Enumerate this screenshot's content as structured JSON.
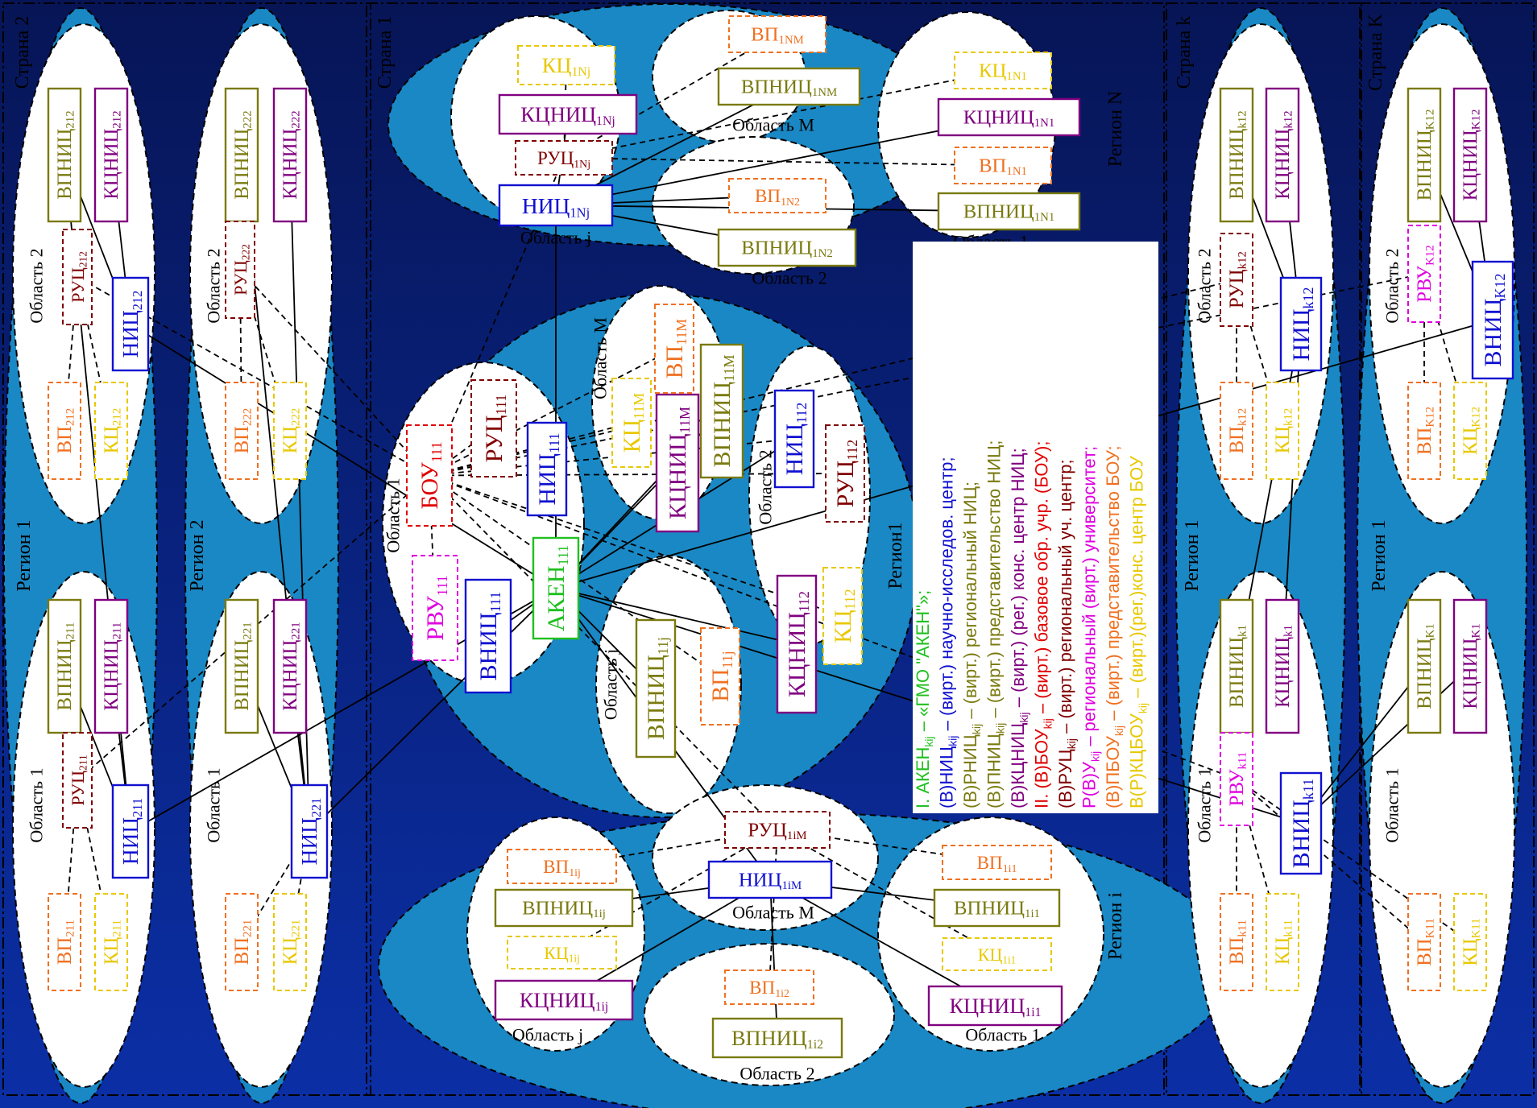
{
  "colors": {
    "background_top": "#0b1e7a",
    "background_bottom": "#0a2a9e",
    "region_fill": "#1a88c4",
    "area_fill": "#ffffff",
    "text_black": "#111111",
    "nic": "#1010d0",
    "vpnic": "#7a7a10",
    "kcnic": "#800080",
    "kc": "#e8c800",
    "vp": "#f07020",
    "ruc": "#800000",
    "bou": "#e00000",
    "rvu": "#e000e0",
    "aken": "#20c020",
    "legend_bg": "#ffffff"
  },
  "countries": [
    {
      "id": "c2",
      "label": "Страна 2"
    },
    {
      "id": "c1",
      "label": "Страна 1"
    },
    {
      "id": "ck",
      "label": "Страна k"
    },
    {
      "id": "cK",
      "label": "Страна K"
    }
  ],
  "regions": {
    "c2r1": "Регион 1",
    "c2r2": "Регион 2",
    "c1N": "Регион N",
    "c1one": "Регион1",
    "c1i": "Регион i",
    "ckr1": "Регион 1",
    "cKr1": "Регион 1"
  },
  "areas": {
    "c2_211": "Область 1",
    "c2_212": "Область 2",
    "c2_221": "Область 1",
    "c2_222": "Область 2",
    "N_j": "Область j",
    "N_M": "Область M",
    "N_1": "Область 1",
    "N_2": "Область 2",
    "r1_1": "Область 1",
    "r1_M": "Область M",
    "r1_2": "Область 2",
    "r1_j": "Область j",
    "i_M": "Область M",
    "i_j": "Область j",
    "i_1": "Область 1",
    "i_2": "Область 2",
    "k_1": "Область 1",
    "k_2": "Область 2",
    "K_1": "Область 1",
    "K_2": "Область 2"
  },
  "nodes": {
    "nic212": {
      "t": "НИЦ",
      "s": "212"
    },
    "vpnic212": {
      "t": "ВПНИЦ",
      "s": "212"
    },
    "kcnic212": {
      "t": "КЦНИЦ",
      "s": "212"
    },
    "ruc212": {
      "t": "РУЦ",
      "s": "212"
    },
    "vp212": {
      "t": "ВП",
      "s": "212"
    },
    "kc212": {
      "t": "КЦ",
      "s": "212"
    },
    "nic211": {
      "t": "НИЦ",
      "s": "211"
    },
    "vpnic211": {
      "t": "ВПНИЦ",
      "s": "211"
    },
    "kcnic211": {
      "t": "КЦНИЦ",
      "s": "211"
    },
    "ruc211": {
      "t": "РУЦ",
      "s": "211"
    },
    "vp211": {
      "t": "ВП",
      "s": "211"
    },
    "kc211": {
      "t": "КЦ",
      "s": "211"
    },
    "vpnic222": {
      "t": "ВПНИЦ",
      "s": "222"
    },
    "kcnic222": {
      "t": "КЦНИЦ",
      "s": "222"
    },
    "ruc222": {
      "t": "РУЦ",
      "s": "222"
    },
    "vp222": {
      "t": "ВП",
      "s": "222"
    },
    "kc222": {
      "t": "КЦ",
      "s": "222"
    },
    "nic221": {
      "t": "НИЦ",
      "s": "221"
    },
    "vpnic221": {
      "t": "ВПНИЦ",
      "s": "221"
    },
    "kcnic221": {
      "t": "КЦНИЦ",
      "s": "221"
    },
    "vp221": {
      "t": "ВП",
      "s": "221"
    },
    "kc221": {
      "t": "КЦ",
      "s": "221"
    },
    "kc1Nj": {
      "t": "КЦ",
      "s": "1Nj"
    },
    "kcnic1Nj": {
      "t": "КЦНИЦ",
      "s": "1Nj"
    },
    "ruc1Nj": {
      "t": "РУЦ",
      "s": "1Nj"
    },
    "nic1Nj": {
      "t": "НИЦ",
      "s": "1Nj"
    },
    "vp1NM": {
      "t": "ВП",
      "s": "1NM"
    },
    "vpnic1NM": {
      "t": "ВПНИЦ",
      "s": "1NM"
    },
    "kc1N1": {
      "t": "КЦ",
      "s": "1N1"
    },
    "kcnic1N1": {
      "t": "КЦНИЦ",
      "s": "1N1"
    },
    "vp1N1": {
      "t": "ВП",
      "s": "1N1"
    },
    "vpnic1N1": {
      "t": "ВПНИЦ",
      "s": "1N1"
    },
    "vp1N2": {
      "t": "ВП",
      "s": "1N2"
    },
    "vpnic1N2": {
      "t": "ВПНИЦ",
      "s": "1N2"
    },
    "bou111": {
      "t": "БОУ",
      "s": "111"
    },
    "ruc111": {
      "t": "РУЦ",
      "s": "111"
    },
    "nic111": {
      "t": "НИЦ",
      "s": "111"
    },
    "rvu111": {
      "t": "РВУ",
      "s": "111"
    },
    "vnic111": {
      "t": "ВНИЦ",
      "s": "111"
    },
    "aken111": {
      "t": "АКЕН",
      "s": "111"
    },
    "kc11M": {
      "t": "КЦ",
      "s": "11M"
    },
    "kcnic11M": {
      "t": "КЦНИЦ",
      "s": "11M"
    },
    "vp11M": {
      "t": "ВП",
      "s": "11M"
    },
    "vpnic11M": {
      "t": "ВПНИЦ",
      "s": "11M"
    },
    "nic112": {
      "t": "НИЦ",
      "s": "112"
    },
    "ruc112": {
      "t": "РУЦ",
      "s": "112"
    },
    "kcnic112": {
      "t": "КЦНИЦ",
      "s": "112"
    },
    "kc112": {
      "t": "КЦ",
      "s": "112"
    },
    "vpnic11j": {
      "t": "ВПНИЦ",
      "s": "11j"
    },
    "vp11j": {
      "t": "ВП",
      "s": "11j"
    },
    "ruc1iM": {
      "t": "РУЦ",
      "s": "1iM"
    },
    "nic1iM": {
      "t": "НИЦ",
      "s": "1iM"
    },
    "vp1ij": {
      "t": "ВП",
      "s": "1ij"
    },
    "vpnic1ij": {
      "t": "ВПНИЦ",
      "s": "1ij"
    },
    "kc1ij": {
      "t": "КЦ",
      "s": "1ij"
    },
    "kcnic1ij": {
      "t": "КЦНИЦ",
      "s": "1ij"
    },
    "vp1i1": {
      "t": "ВП",
      "s": "1i1"
    },
    "vpnic1i1": {
      "t": "ВПНИЦ",
      "s": "1i1"
    },
    "kc1i1": {
      "t": "КЦ",
      "s": "1i1"
    },
    "kcnic1i1": {
      "t": "КЦНИЦ",
      "s": "1i1"
    },
    "vp1i2": {
      "t": "ВП",
      "s": "1i2"
    },
    "vpnic1i2": {
      "t": "ВПНИЦ",
      "s": "1i2"
    },
    "vpnick12": {
      "t": "ВПНИЦ",
      "s": "k12"
    },
    "kcnick12": {
      "t": "КЦНИЦ",
      "s": "k12"
    },
    "ruck12": {
      "t": "РУЦ",
      "s": "k12"
    },
    "nick12": {
      "t": "НИЦ",
      "s": "k12"
    },
    "vpk12": {
      "t": "ВП",
      "s": "k12"
    },
    "kck12": {
      "t": "КЦ",
      "s": "k12"
    },
    "vpnick1": {
      "t": "ВПНИЦ",
      "s": "k1"
    },
    "kcnick1": {
      "t": "КЦНИЦ",
      "s": "k1"
    },
    "rvuk11": {
      "t": "РВУ",
      "s": "k11"
    },
    "vnick11": {
      "t": "ВНИЦ",
      "s": "k11"
    },
    "vpk11": {
      "t": "ВП",
      "s": "k11"
    },
    "kck11": {
      "t": "КЦ",
      "s": "k11"
    },
    "vpnicK12": {
      "t": "ВПНИЦ",
      "s": "K12"
    },
    "kcnicK12": {
      "t": "КЦНИЦ",
      "s": "K12"
    },
    "rvuK12": {
      "t": "РВУ",
      "s": "K12"
    },
    "vnicK12": {
      "t": "ВНИЦ",
      "s": "K12"
    },
    "vpK12": {
      "t": "ВП",
      "s": "K12"
    },
    "kcK12": {
      "t": "КЦ",
      "s": "K12"
    },
    "vpnicK1": {
      "t": "ВПНИЦ",
      "s": "K1"
    },
    "kcnicK1": {
      "t": "КЦНИЦ",
      "s": "K1"
    },
    "vpK11": {
      "t": "ВП",
      "s": "K11"
    },
    "kcK11": {
      "t": "КЦ",
      "s": "K11"
    }
  },
  "legend": [
    {
      "text": "I. АКЕН",
      "sub": "kij",
      "rest": " – «ГМО \"АКЕН\"»;",
      "color": "aken"
    },
    {
      "text": "(В)НИЦ",
      "sub": "kij",
      "rest": " – (вирт.) научно-исследов. центр;",
      "color": "nic"
    },
    {
      "text": "(В)РНИЦ",
      "sub": "kij",
      "rest": " – (вирт.) региональный НИЦ;",
      "color": "vpnic"
    },
    {
      "text": "(В)ПНИЦ",
      "sub": "kij",
      "rest": " – (вирт.) представительство НИЦ;",
      "color": "vpnic"
    },
    {
      "text": "(В)КЦНИЦ",
      "sub": "kij",
      "rest": " – (вирт.) (рег.) конс. центр НИЦ;",
      "color": "kcnic"
    },
    {
      "text": "II. (В)БОУ",
      "sub": "kij",
      "rest": " – (вирт.) базовое обр. учр. (БОУ);",
      "color": "bou"
    },
    {
      "text": "(В)РУЦ",
      "sub": "kij",
      "rest": " – (вирт.) региональный уч. центр;",
      "color": "ruc"
    },
    {
      "text": "Р(В)У",
      "sub": "kij",
      "rest": " – региональный (вирт.) университет;",
      "color": "rvu"
    },
    {
      "text": "(В)ПБОУ",
      "sub": "kij",
      "rest": " – (вирт.) представительство БОУ;",
      "color": "vp"
    },
    {
      "text": "В(Р)КЦБОУ",
      "sub": "kij",
      "rest": " – (вирт.)(рег.)конс. центр БОУ",
      "color": "kc"
    }
  ]
}
